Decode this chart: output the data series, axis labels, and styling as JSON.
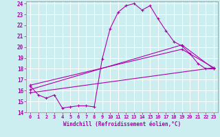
{
  "xlabel": "Windchill (Refroidissement éolien,°C)",
  "bg_color": "#cceef0",
  "line_color": "#aa00aa",
  "grid_color": "#b0dde0",
  "xlim": [
    -0.5,
    23.5
  ],
  "ylim": [
    14,
    24.2
  ],
  "xticks": [
    0,
    1,
    2,
    3,
    4,
    5,
    6,
    7,
    8,
    9,
    10,
    11,
    12,
    13,
    14,
    15,
    16,
    17,
    18,
    19,
    20,
    21,
    22,
    23
  ],
  "yticks": [
    14,
    15,
    16,
    17,
    18,
    19,
    20,
    21,
    22,
    23,
    24
  ],
  "series": [
    {
      "x": [
        0,
        1,
        2,
        3,
        4,
        5,
        6,
        7,
        8,
        9,
        10,
        11,
        12,
        13,
        14,
        15,
        16,
        17,
        18,
        19,
        20,
        21,
        22,
        23
      ],
      "y": [
        16.4,
        15.6,
        15.3,
        15.6,
        14.4,
        14.5,
        14.6,
        14.6,
        14.5,
        18.9,
        21.7,
        23.2,
        23.8,
        24.0,
        23.4,
        23.8,
        22.6,
        21.5,
        20.5,
        20.1,
        19.4,
        18.5,
        18.0,
        18.0
      ]
    },
    {
      "x": [
        0,
        23
      ],
      "y": [
        15.8,
        18.1
      ]
    },
    {
      "x": [
        0,
        19,
        23
      ],
      "y": [
        16.1,
        20.2,
        18.0
      ]
    },
    {
      "x": [
        0,
        19,
        23
      ],
      "y": [
        16.5,
        19.8,
        18.1
      ]
    }
  ]
}
